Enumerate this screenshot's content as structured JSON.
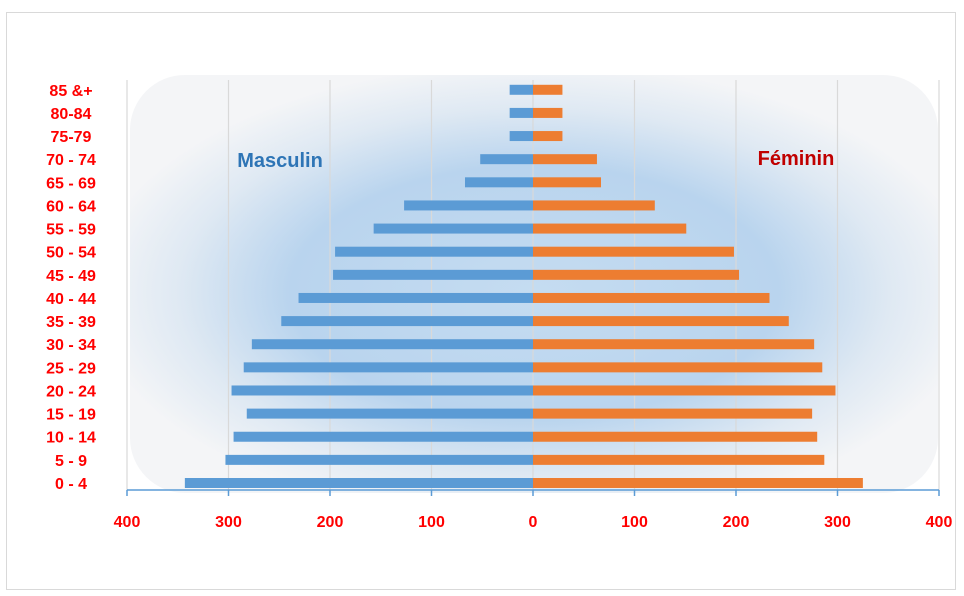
{
  "chart_data": {
    "type": "bar",
    "orientation": "horizontal",
    "categories": [
      "0 - 4",
      "5 - 9",
      "10 - 14",
      "15 - 19",
      "20 - 24",
      "25 - 29",
      "30 - 34",
      "35 - 39",
      "40 - 44",
      "45 - 49",
      "50 - 54",
      "55 - 59",
      "60 - 64",
      "65 - 69",
      "70 - 74",
      "75-79",
      "80-84",
      "85 &+"
    ],
    "series": [
      {
        "name": "Masculin",
        "color": "#5b9bd5",
        "values": [
          343,
          303,
          295,
          282,
          297,
          285,
          277,
          248,
          231,
          197,
          195,
          157,
          127,
          67,
          52,
          23,
          23,
          23
        ]
      },
      {
        "name": "Féminin",
        "color": "#ed7d31",
        "values": [
          325,
          287,
          280,
          275,
          298,
          285,
          277,
          252,
          233,
          203,
          198,
          151,
          120,
          67,
          63,
          29,
          29,
          29
        ]
      }
    ],
    "x_ticks": [
      "400",
      "300",
      "200",
      "100",
      "0",
      "100",
      "200",
      "300",
      "400"
    ],
    "xlim": [
      -400,
      400
    ],
    "grid": true,
    "series_label_colors": {
      "Masculin": "#2e75b6",
      "Féminin": "#c00000"
    },
    "tick_color": "#ff0000",
    "axis_color": "#5b9bd5",
    "gridline_color": "#d9d9d9"
  }
}
